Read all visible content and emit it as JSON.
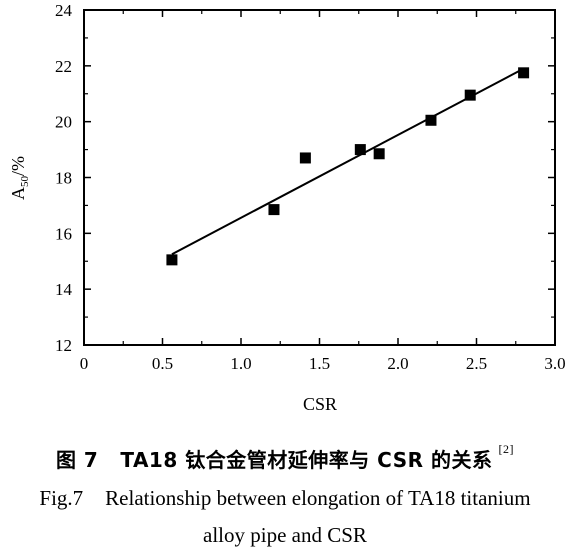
{
  "chart_data": {
    "type": "scatter",
    "xlabel": "CSR",
    "ylabel_main": "A",
    "ylabel_sub": "50",
    "ylabel_unit": "/%",
    "xlim": [
      0,
      3.0
    ],
    "ylim": [
      12,
      24
    ],
    "xticks": [
      "0",
      "0.5",
      "1.0",
      "1.5",
      "2.0",
      "2.5",
      "3.0"
    ],
    "xtick_values": [
      0,
      0.5,
      1.0,
      1.5,
      2.0,
      2.5,
      3.0
    ],
    "yticks": [
      "12",
      "14",
      "16",
      "18",
      "20",
      "22",
      "24"
    ],
    "ytick_values": [
      12,
      14,
      16,
      18,
      20,
      22,
      24
    ],
    "x_minor_step": 0.25,
    "y_minor_step": 1,
    "points": [
      {
        "x": 0.56,
        "y": 15.05
      },
      {
        "x": 1.21,
        "y": 16.85
      },
      {
        "x": 1.41,
        "y": 18.7
      },
      {
        "x": 1.76,
        "y": 19.0
      },
      {
        "x": 1.88,
        "y": 18.85
      },
      {
        "x": 2.21,
        "y": 20.05
      },
      {
        "x": 2.46,
        "y": 20.95
      },
      {
        "x": 2.8,
        "y": 21.75
      }
    ],
    "fit_line": {
      "x": [
        0.56,
        2.8
      ],
      "y": [
        15.25,
        21.9
      ]
    },
    "marker_color": "#000000",
    "line_color": "#000000"
  },
  "caption": {
    "zh_fignum": "图 7",
    "zh_text": "TA18 钛合金管材延伸率与 CSR 的关系",
    "zh_ref": "[2]",
    "en_fignum": "Fig.7",
    "en_line1": "Relationship between elongation of TA18 titanium",
    "en_line2": "alloy pipe and CSR"
  }
}
